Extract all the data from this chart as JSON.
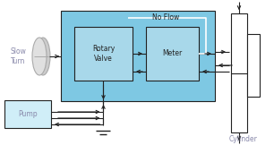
{
  "fig_width": 3.06,
  "fig_height": 1.62,
  "dpi": 100,
  "bg_color": "#ffffff",
  "light_blue": "#7ec8e3",
  "inner_box_blue": "#a8d8ea",
  "pump_fill": "#d0eef8",
  "text_color_gray": "#8888aa",
  "line_color": "#222222",
  "no_flow_text": "No Flow",
  "slow_turn_text": "Slow\nTurn",
  "rotary_valve_text": "Rotary\nValve",
  "meter_text": "Meter",
  "pump_text": "Pump",
  "cylinder_text": "Cylinder",
  "xlim": [
    0,
    306
  ],
  "ylim": [
    0,
    162
  ]
}
